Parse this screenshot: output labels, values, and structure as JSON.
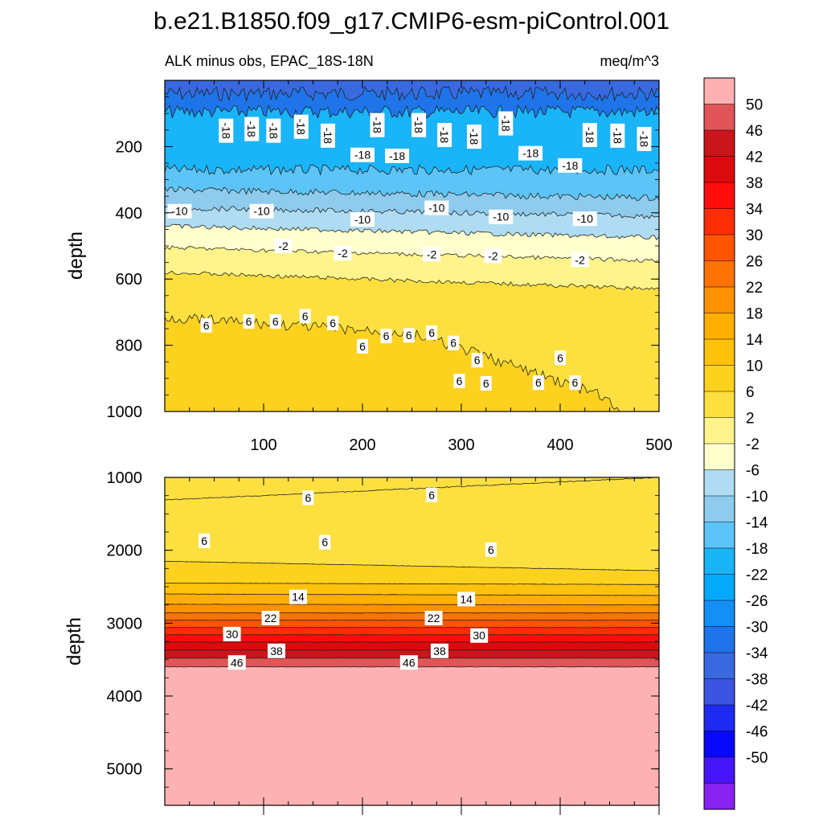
{
  "figure": {
    "title": "b.e21.B1850.f09_g17.CMIP6-esm-piControl.001",
    "subtitle_left": "ALK minus obs, EPAC_18S-18N",
    "subtitle_right": "meq/m^3"
  },
  "colorbar": {
    "labels": [
      "50",
      "46",
      "42",
      "38",
      "34",
      "30",
      "26",
      "22",
      "18",
      "14",
      "10",
      "6",
      "2",
      "-2",
      "-6",
      "-10",
      "-14",
      "-18",
      "-22",
      "-26",
      "-30",
      "-34",
      "-38",
      "-42",
      "-46",
      "-50"
    ],
    "colors": [
      "#fdb1b2",
      "#e05558",
      "#c9151b",
      "#db0a0d",
      "#ff0c0c",
      "#fe2d06",
      "#ff5400",
      "#fe7303",
      "#fe9101",
      "#feaf02",
      "#fec20c",
      "#fdd21f",
      "#fde040",
      "#fff48c",
      "#ffffcd",
      "#afdcf2",
      "#8ecbed",
      "#5cc4f6",
      "#1ab4f8",
      "#04a9fa",
      "#148ff5",
      "#1e74e8",
      "#3869df",
      "#3c54e2",
      "#1e29f2",
      "#0808fc",
      "#4715f9",
      "#8722ef"
    ]
  },
  "chart_data": [
    {
      "type": "contour",
      "panel": "upper",
      "title": "ALK minus obs, EPAC_18S-18N",
      "units": "meq/m^3",
      "xlabel": "",
      "ylabel": "depth",
      "xlim": [
        0,
        500
      ],
      "ylim": [
        1000,
        0
      ],
      "x_ticks": [
        100,
        200,
        300,
        400,
        500
      ],
      "y_ticks": [
        200,
        400,
        600,
        800,
        1000
      ],
      "contour_labels": [
        {
          "value": "-18",
          "x": 62,
          "depth": 152
        },
        {
          "value": "-18",
          "x": 88,
          "depth": 147
        },
        {
          "value": "-18",
          "x": 110,
          "depth": 152
        },
        {
          "value": "-18",
          "x": 138,
          "depth": 140
        },
        {
          "value": "-18",
          "x": 165,
          "depth": 167
        },
        {
          "value": "-18",
          "x": 215,
          "depth": 135
        },
        {
          "value": "-18",
          "x": 257,
          "depth": 135
        },
        {
          "value": "-18",
          "x": 283,
          "depth": 165
        },
        {
          "value": "-18",
          "x": 313,
          "depth": 170
        },
        {
          "value": "-18",
          "x": 345,
          "depth": 130
        },
        {
          "value": "-18",
          "x": 430,
          "depth": 165
        },
        {
          "value": "-18",
          "x": 458,
          "depth": 167
        },
        {
          "value": "-18",
          "x": 485,
          "depth": 177
        },
        {
          "value": "-18",
          "x": 200,
          "depth": 225
        },
        {
          "value": "-18",
          "x": 235,
          "depth": 228
        },
        {
          "value": "-18",
          "x": 370,
          "depth": 220
        },
        {
          "value": "-18",
          "x": 410,
          "depth": 257
        },
        {
          "value": "-10",
          "x": 15,
          "depth": 395
        },
        {
          "value": "-10",
          "x": 98,
          "depth": 395
        },
        {
          "value": "-10",
          "x": 200,
          "depth": 420
        },
        {
          "value": "-10",
          "x": 275,
          "depth": 385
        },
        {
          "value": "-10",
          "x": 340,
          "depth": 412
        },
        {
          "value": "-10",
          "x": 425,
          "depth": 418
        },
        {
          "value": "-2",
          "x": 120,
          "depth": 500
        },
        {
          "value": "-2",
          "x": 180,
          "depth": 522
        },
        {
          "value": "-2",
          "x": 270,
          "depth": 525
        },
        {
          "value": "-2",
          "x": 332,
          "depth": 530
        },
        {
          "value": "-2",
          "x": 420,
          "depth": 542
        },
        {
          "value": "6",
          "x": 42,
          "depth": 740
        },
        {
          "value": "6",
          "x": 85,
          "depth": 728
        },
        {
          "value": "6",
          "x": 112,
          "depth": 728
        },
        {
          "value": "6",
          "x": 142,
          "depth": 712
        },
        {
          "value": "6",
          "x": 170,
          "depth": 733
        },
        {
          "value": "6",
          "x": 200,
          "depth": 803
        },
        {
          "value": "6",
          "x": 224,
          "depth": 772
        },
        {
          "value": "6",
          "x": 247,
          "depth": 770
        },
        {
          "value": "6",
          "x": 270,
          "depth": 762
        },
        {
          "value": "6",
          "x": 292,
          "depth": 793
        },
        {
          "value": "6",
          "x": 316,
          "depth": 845
        },
        {
          "value": "6",
          "x": 400,
          "depth": 838
        },
        {
          "value": "6",
          "x": 298,
          "depth": 908
        },
        {
          "value": "6",
          "x": 325,
          "depth": 915
        },
        {
          "value": "6",
          "x": 378,
          "depth": 913
        },
        {
          "value": "6",
          "x": 415,
          "depth": 913
        }
      ]
    },
    {
      "type": "contour",
      "panel": "lower",
      "xlabel": "",
      "ylabel": "depth",
      "xlim": [
        0,
        500
      ],
      "ylim": [
        5500,
        1000
      ],
      "y_ticks": [
        1000,
        2000,
        3000,
        4000,
        5000
      ],
      "contour_labels": [
        {
          "value": "6",
          "x": 145,
          "depth": 1280
        },
        {
          "value": "6",
          "x": 270,
          "depth": 1240
        },
        {
          "value": "6",
          "x": 40,
          "depth": 1870
        },
        {
          "value": "6",
          "x": 162,
          "depth": 1890
        },
        {
          "value": "6",
          "x": 330,
          "depth": 1990
        },
        {
          "value": "14",
          "x": 135,
          "depth": 2640
        },
        {
          "value": "14",
          "x": 305,
          "depth": 2670
        },
        {
          "value": "22",
          "x": 107,
          "depth": 2930
        },
        {
          "value": "22",
          "x": 272,
          "depth": 2930
        },
        {
          "value": "30",
          "x": 68,
          "depth": 3150
        },
        {
          "value": "30",
          "x": 318,
          "depth": 3170
        },
        {
          "value": "38",
          "x": 113,
          "depth": 3380
        },
        {
          "value": "38",
          "x": 278,
          "depth": 3380
        },
        {
          "value": "46",
          "x": 73,
          "depth": 3540
        },
        {
          "value": "46",
          "x": 247,
          "depth": 3540
        }
      ]
    }
  ]
}
